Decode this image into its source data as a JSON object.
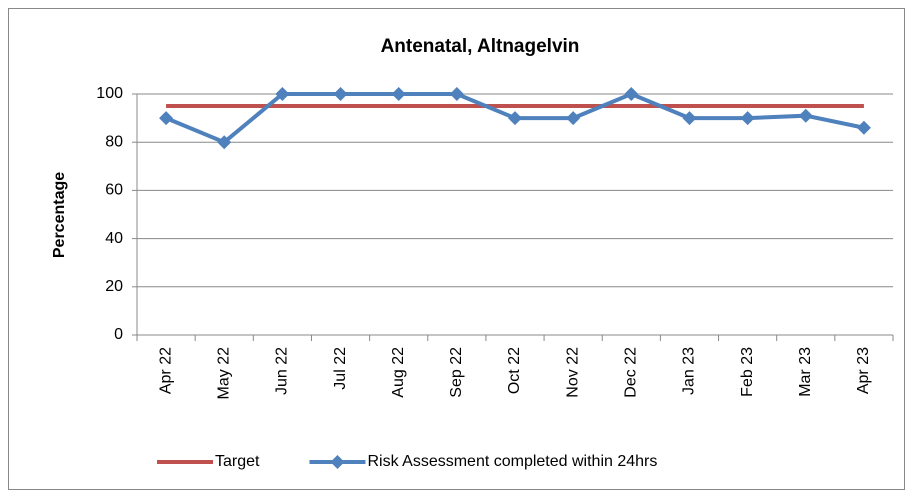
{
  "chart_data": {
    "type": "line",
    "title": "Antenatal, Altnagelvin",
    "y_label": "Percentage",
    "categories": [
      "Apr 22",
      "May 22",
      "Jun 22",
      "Jul 22",
      "Aug 22",
      "Sep 22",
      "Oct 22",
      "Nov 22",
      "Dec 22",
      "Jan 23",
      "Feb 23",
      "Mar 23",
      "Apr 23"
    ],
    "series": [
      {
        "name": "Target",
        "color": "#c0504d",
        "marker": "none",
        "values": [
          95,
          95,
          95,
          95,
          95,
          95,
          95,
          95,
          95,
          95,
          95,
          95,
          95
        ]
      },
      {
        "name": "Risk Assessment completed within 24hrs",
        "color": "#4f81bd",
        "marker": "diamond",
        "values": [
          90,
          80,
          100,
          100,
          100,
          100,
          90,
          90,
          100,
          90,
          90,
          91,
          86
        ]
      }
    ],
    "ylim": [
      0,
      100
    ],
    "yticks": [
      0,
      20,
      40,
      60,
      80,
      100
    ],
    "grid": true,
    "legend": "bottom"
  }
}
